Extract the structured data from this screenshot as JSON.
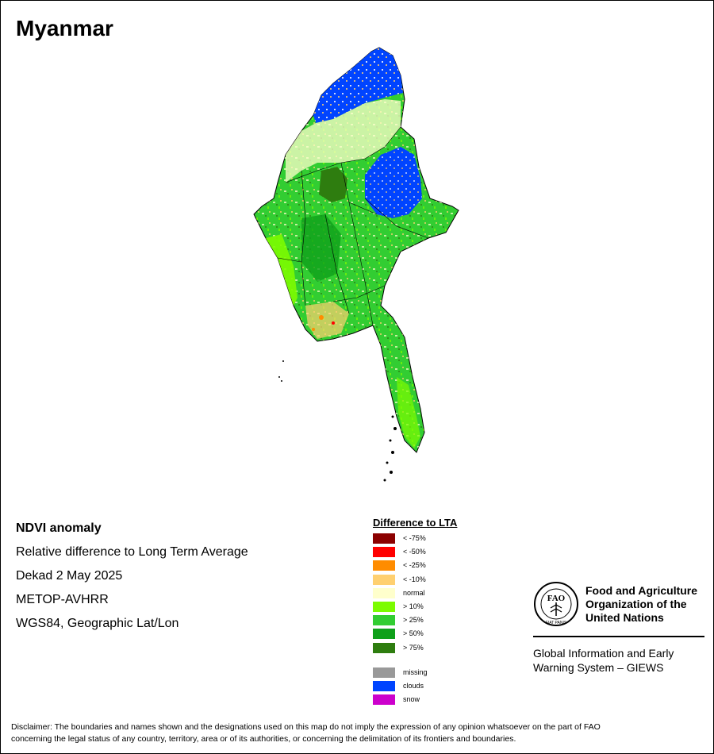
{
  "title": "Myanmar",
  "info": {
    "heading": "NDVI anomaly",
    "line1": "Relative difference to Long Term Average",
    "line2": "Dekad 2 May 2025",
    "line3": "METOP-AVHRR",
    "line4": "WGS84, Geographic Lat/Lon"
  },
  "legend": {
    "title": "Difference to LTA",
    "items": [
      {
        "label": "< -75%",
        "color": "#8b0000"
      },
      {
        "label": "< -50%",
        "color": "#ff0000"
      },
      {
        "label": "< -25%",
        "color": "#ff8c00"
      },
      {
        "label": "< -10%",
        "color": "#ffd070"
      },
      {
        "label": "normal",
        "color": "#ffffcc"
      },
      {
        "label": "> 10%",
        "color": "#7cfc00"
      },
      {
        "label": "> 25%",
        "color": "#32cd32"
      },
      {
        "label": "> 50%",
        "color": "#0fa01a"
      },
      {
        "label": "> 75%",
        "color": "#2e7d0f"
      }
    ],
    "extra": [
      {
        "label": "missing",
        "color": "#999999"
      },
      {
        "label": "clouds",
        "color": "#0044ff"
      },
      {
        "label": "snow",
        "color": "#cc00cc"
      }
    ]
  },
  "fao": {
    "name1": "Food and Agriculture",
    "name2": "Organization of the",
    "name3": "United Nations",
    "logo_text": "FAO",
    "motto": "FIAT PANIS"
  },
  "giews": {
    "line1": "Global Information and Early",
    "line2": "Warning System – GIEWS"
  },
  "disclaimer": {
    "line1": "Disclaimer: The boundaries and names shown and the designations used on this map do not imply the expression of any opinion whatsoever on the part of FAO",
    "line2": "concerning the legal status of any country, territory, area or of its authorities, or concerning the delimitation of its frontiers and boundaries."
  }
}
